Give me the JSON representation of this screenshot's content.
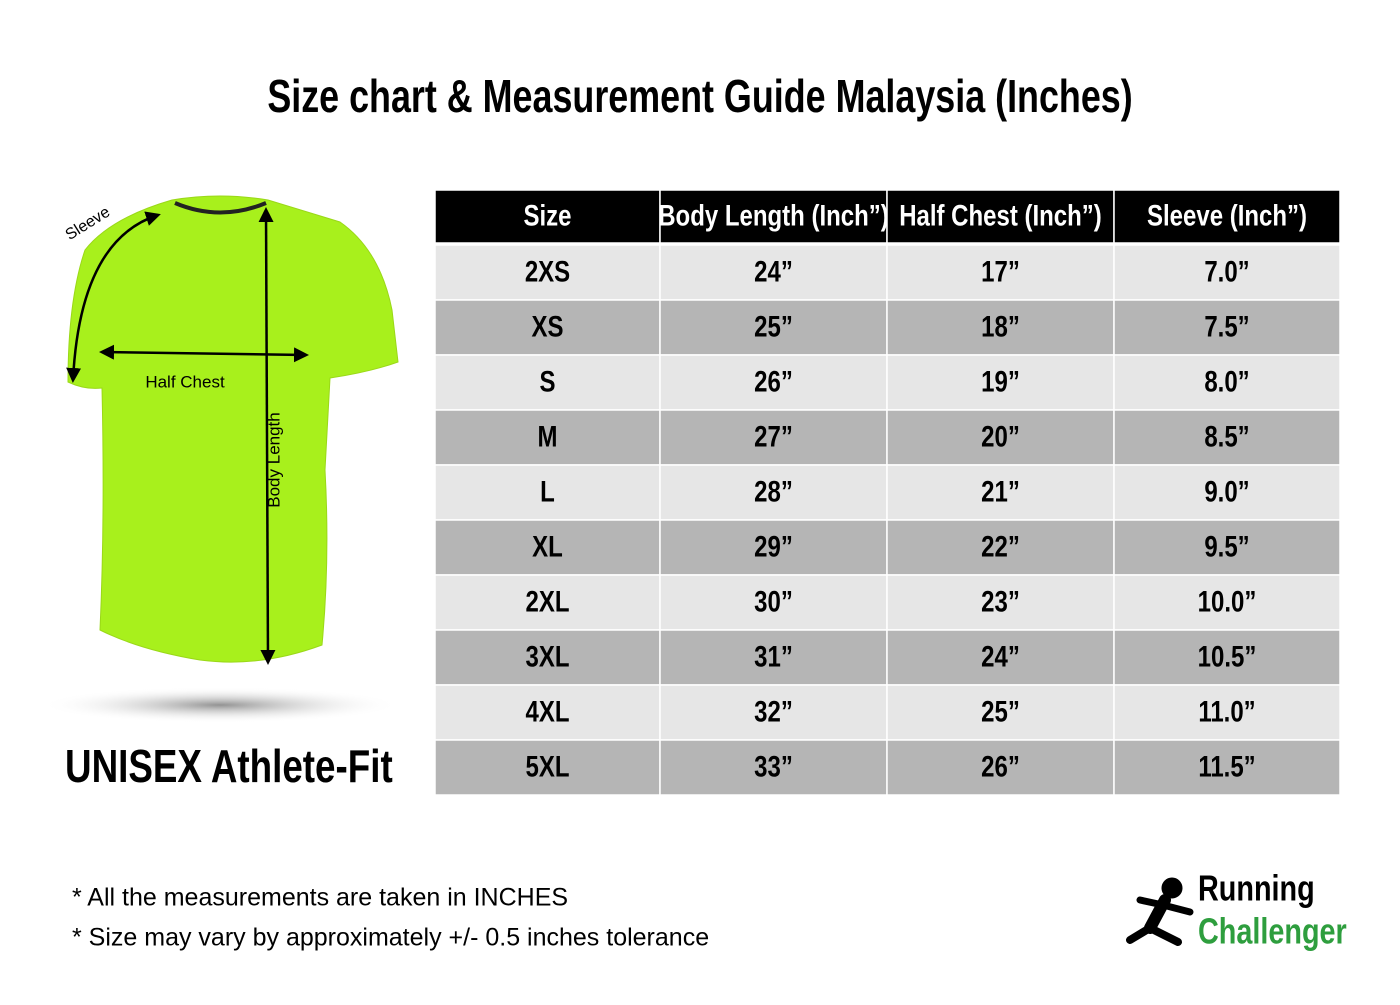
{
  "header": {
    "title": "Size chart & Measurement Guide Malaysia (Inches)"
  },
  "shirt": {
    "sleeve_label": "Sleeve",
    "chest_label": "Half Chest",
    "length_label": "Body Length",
    "fit": "UNISEX Athlete-Fit"
  },
  "table": {
    "columns": [
      "Size",
      "Body Length (Inch”)",
      "Half Chest (Inch”)",
      "Sleeve (Inch”)"
    ],
    "rows": [
      [
        "2XS",
        "24”",
        "17”",
        "7.0”"
      ],
      [
        "XS",
        "25”",
        "18”",
        "7.5”"
      ],
      [
        "S",
        "26”",
        "19”",
        "8.0”"
      ],
      [
        "M",
        "27”",
        "20”",
        "8.5”"
      ],
      [
        "L",
        "28”",
        "21”",
        "9.0”"
      ],
      [
        "XL",
        "29”",
        "22”",
        "9.5”"
      ],
      [
        "2XL",
        "30”",
        "23”",
        "10.0”"
      ],
      [
        "3XL",
        "31”",
        "24”",
        "10.5”"
      ],
      [
        "4XL",
        "32”",
        "25”",
        "11.0”"
      ],
      [
        "5XL",
        "33”",
        "26”",
        "11.5”"
      ]
    ]
  },
  "notes": [
    "* All the measurements are taken in INCHES",
    "* Size may vary by approximately +/- 0.5 inches tolerance"
  ],
  "logo": {
    "line1": "Running",
    "line2": "Challenger"
  }
}
